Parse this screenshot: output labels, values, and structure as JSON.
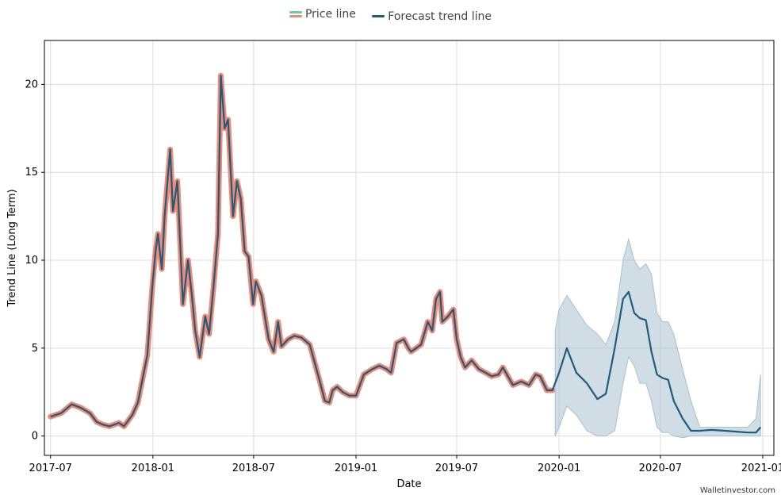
{
  "legend": {
    "price_label": "Price line",
    "forecast_label": "Forecast trend line"
  },
  "watermark": "Walletinvestor.com",
  "colors": {
    "price": "#f08a77",
    "price_legend_top": "#66cdaa",
    "forecast": "#1f5b7a",
    "band": "#a9c1cf",
    "grid": "#dcdcdc"
  },
  "chart_data": {
    "type": "line",
    "title": "",
    "xlabel": "Date",
    "ylabel": "Trend Line (Long Term)",
    "ylim": [
      -1.1,
      22.5
    ],
    "xlim": [
      "2017-06-20",
      "2021-01-21"
    ],
    "yticks": [
      0,
      5,
      10,
      15,
      20
    ],
    "xticks": [
      "2017-07",
      "2018-01",
      "2018-07",
      "2019-01",
      "2019-07",
      "2020-01",
      "2020-07",
      "2021-01"
    ],
    "grid": true,
    "legend_position": "top-center",
    "series": [
      {
        "name": "Price line",
        "x": [
          "2017-07-01",
          "2017-07-20",
          "2017-08-08",
          "2017-08-25",
          "2017-09-10",
          "2017-09-22",
          "2017-10-03",
          "2017-10-15",
          "2017-11-01",
          "2017-11-10",
          "2017-11-25",
          "2017-12-05",
          "2017-12-15",
          "2017-12-22",
          "2017-12-31",
          "2018-01-06",
          "2018-01-10",
          "2018-01-17",
          "2018-01-22",
          "2018-02-01",
          "2018-02-06",
          "2018-02-14",
          "2018-02-24",
          "2018-03-05",
          "2018-03-12",
          "2018-03-18",
          "2018-03-26",
          "2018-04-05",
          "2018-04-12",
          "2018-04-20",
          "2018-04-28",
          "2018-05-03",
          "2018-05-10",
          "2018-05-16",
          "2018-05-25",
          "2018-06-01",
          "2018-06-08",
          "2018-06-15",
          "2018-06-22",
          "2018-06-30",
          "2018-07-05",
          "2018-07-15",
          "2018-07-28",
          "2018-08-06",
          "2018-08-14",
          "2018-08-20",
          "2018-09-01",
          "2018-09-12",
          "2018-09-25",
          "2018-10-10",
          "2018-10-28",
          "2018-11-06",
          "2018-11-14",
          "2018-11-20",
          "2018-11-28",
          "2018-12-08",
          "2018-12-20",
          "2019-01-01",
          "2019-01-15",
          "2019-01-30",
          "2019-02-12",
          "2019-02-25",
          "2019-03-05",
          "2019-03-15",
          "2019-03-28",
          "2019-04-05",
          "2019-04-10",
          "2019-04-28",
          "2019-05-10",
          "2019-05-18",
          "2019-05-25",
          "2019-06-01",
          "2019-06-05",
          "2019-06-15",
          "2019-06-25",
          "2019-07-01",
          "2019-07-08",
          "2019-07-16",
          "2019-07-28",
          "2019-08-10",
          "2019-08-22",
          "2019-09-02",
          "2019-09-14",
          "2019-09-22",
          "2019-10-10",
          "2019-10-25",
          "2019-11-08",
          "2019-11-20",
          "2019-11-28",
          "2019-12-10",
          "2019-12-20"
        ],
        "values": [
          1.1,
          1.3,
          1.8,
          1.6,
          1.3,
          0.8,
          0.65,
          0.55,
          0.75,
          0.55,
          1.2,
          1.9,
          3.5,
          4.6,
          8.5,
          10.6,
          11.5,
          9.5,
          12.5,
          16.3,
          12.8,
          14.5,
          7.5,
          10.0,
          8.0,
          6.0,
          4.5,
          6.8,
          5.8,
          8.5,
          11.5,
          20.5,
          17.5,
          18.0,
          12.5,
          14.5,
          13.5,
          10.5,
          10.2,
          7.5,
          8.8,
          8.0,
          5.5,
          4.8,
          6.5,
          5.1,
          5.5,
          5.7,
          5.6,
          5.2,
          3.1,
          2.0,
          1.9,
          2.6,
          2.8,
          2.5,
          2.3,
          2.3,
          3.5,
          3.8,
          4.0,
          3.8,
          3.6,
          5.3,
          5.5,
          5.0,
          4.8,
          5.2,
          6.5,
          6.0,
          7.8,
          8.2,
          6.5,
          6.8,
          7.2,
          5.5,
          4.5,
          3.9,
          4.3,
          3.8,
          3.6,
          3.4,
          3.5,
          3.9,
          2.9,
          3.1,
          2.9,
          3.5,
          3.4,
          2.6,
          2.6
        ]
      },
      {
        "name": "Forecast trend line",
        "x": [
          "2017-07-01",
          "2017-07-20",
          "2017-08-08",
          "2017-08-25",
          "2017-09-10",
          "2017-09-22",
          "2017-10-03",
          "2017-10-15",
          "2017-11-01",
          "2017-11-10",
          "2017-11-25",
          "2017-12-05",
          "2017-12-15",
          "2017-12-22",
          "2017-12-31",
          "2018-01-06",
          "2018-01-10",
          "2018-01-17",
          "2018-01-22",
          "2018-02-01",
          "2018-02-06",
          "2018-02-14",
          "2018-02-24",
          "2018-03-05",
          "2018-03-12",
          "2018-03-18",
          "2018-03-26",
          "2018-04-05",
          "2018-04-12",
          "2018-04-20",
          "2018-04-28",
          "2018-05-03",
          "2018-05-10",
          "2018-05-16",
          "2018-05-25",
          "2018-06-01",
          "2018-06-08",
          "2018-06-15",
          "2018-06-22",
          "2018-06-30",
          "2018-07-05",
          "2018-07-15",
          "2018-07-28",
          "2018-08-06",
          "2018-08-14",
          "2018-08-20",
          "2018-09-01",
          "2018-09-12",
          "2018-09-25",
          "2018-10-10",
          "2018-10-28",
          "2018-11-06",
          "2018-11-14",
          "2018-11-20",
          "2018-11-28",
          "2018-12-08",
          "2018-12-20",
          "2019-01-01",
          "2019-01-15",
          "2019-01-30",
          "2019-02-12",
          "2019-02-25",
          "2019-03-05",
          "2019-03-15",
          "2019-03-28",
          "2019-04-05",
          "2019-04-10",
          "2019-04-28",
          "2019-05-10",
          "2019-05-18",
          "2019-05-25",
          "2019-06-01",
          "2019-06-05",
          "2019-06-15",
          "2019-06-25",
          "2019-07-01",
          "2019-07-08",
          "2019-07-16",
          "2019-07-28",
          "2019-08-10",
          "2019-08-22",
          "2019-09-02",
          "2019-09-14",
          "2019-09-22",
          "2019-10-10",
          "2019-10-25",
          "2019-11-08",
          "2019-11-20",
          "2019-11-28",
          "2019-12-10",
          "2019-12-20",
          "2020-01-01",
          "2020-01-15",
          "2020-02-01",
          "2020-02-20",
          "2020-03-10",
          "2020-03-25",
          "2020-04-10",
          "2020-04-25",
          "2020-05-05",
          "2020-05-15",
          "2020-05-25",
          "2020-06-05",
          "2020-06-15",
          "2020-06-25",
          "2020-07-05",
          "2020-07-15",
          "2020-07-25",
          "2020-08-10",
          "2020-08-25",
          "2020-09-10",
          "2020-10-01",
          "2020-10-25",
          "2020-11-15",
          "2020-12-05",
          "2020-12-20",
          "2020-12-28"
        ],
        "values": [
          1.1,
          1.3,
          1.8,
          1.6,
          1.3,
          0.8,
          0.65,
          0.55,
          0.75,
          0.55,
          1.2,
          1.9,
          3.5,
          4.6,
          8.5,
          10.6,
          11.5,
          9.5,
          12.5,
          16.3,
          12.8,
          14.5,
          7.5,
          10.0,
          8.0,
          6.0,
          4.5,
          6.8,
          5.8,
          8.5,
          11.5,
          20.5,
          17.5,
          18.0,
          12.5,
          14.5,
          13.5,
          10.5,
          10.2,
          7.5,
          8.8,
          8.0,
          5.5,
          4.8,
          6.5,
          5.1,
          5.5,
          5.7,
          5.6,
          5.2,
          3.1,
          2.0,
          1.9,
          2.6,
          2.8,
          2.5,
          2.3,
          2.3,
          3.5,
          3.8,
          4.0,
          3.8,
          3.6,
          5.3,
          5.5,
          5.0,
          4.8,
          5.2,
          6.5,
          6.0,
          7.8,
          8.2,
          6.5,
          6.8,
          7.2,
          5.5,
          4.5,
          3.9,
          4.3,
          3.8,
          3.6,
          3.4,
          3.5,
          3.9,
          2.9,
          3.1,
          2.9,
          3.5,
          3.4,
          2.6,
          2.6,
          3.6,
          5.0,
          3.6,
          3.0,
          2.1,
          2.4,
          5.0,
          7.8,
          8.2,
          7.0,
          6.7,
          6.6,
          4.8,
          3.5,
          3.3,
          3.2,
          2.0,
          1.0,
          0.3,
          0.3,
          0.35,
          0.3,
          0.25,
          0.2,
          0.2,
          0.5
        ]
      }
    ],
    "band": {
      "x": [
        "2019-12-25",
        "2020-01-01",
        "2020-01-15",
        "2020-02-01",
        "2020-02-20",
        "2020-03-10",
        "2020-03-25",
        "2020-04-10",
        "2020-04-25",
        "2020-05-05",
        "2020-05-15",
        "2020-05-25",
        "2020-06-05",
        "2020-06-15",
        "2020-06-25",
        "2020-07-05",
        "2020-07-15",
        "2020-07-25",
        "2020-08-10",
        "2020-08-25",
        "2020-09-10",
        "2020-10-01",
        "2020-10-25",
        "2020-11-15",
        "2020-12-05",
        "2020-12-20",
        "2020-12-28"
      ],
      "upper": [
        6.0,
        7.2,
        8.0,
        7.2,
        6.3,
        5.8,
        5.2,
        6.5,
        10.0,
        11.2,
        10.0,
        9.5,
        9.8,
        9.2,
        7.0,
        6.5,
        6.5,
        5.8,
        3.8,
        2.0,
        0.5,
        0.5,
        0.5,
        0.5,
        0.5,
        1.0,
        3.5
      ],
      "lower": [
        0.0,
        0.5,
        1.7,
        1.2,
        0.3,
        0.0,
        0.0,
        0.3,
        3.0,
        4.5,
        4.0,
        3.0,
        3.0,
        2.0,
        0.5,
        0.2,
        0.2,
        0.0,
        -0.1,
        0.0,
        0.0,
        0.0,
        0.0,
        0.0,
        0.0,
        0.0,
        0.0
      ]
    }
  }
}
